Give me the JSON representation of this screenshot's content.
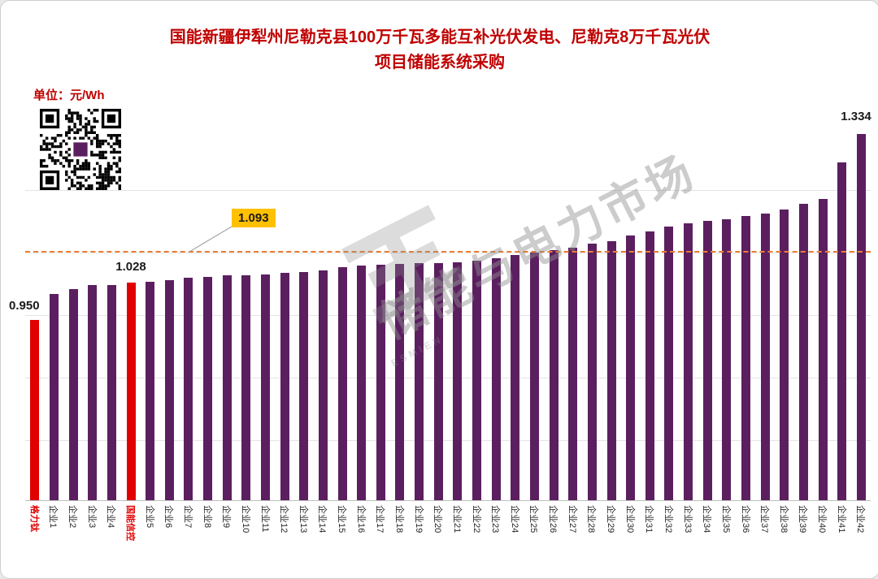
{
  "title": {
    "line1": "国能新疆伊犁州尼勒克县100万千瓦多能互补光伏发电、尼勒克8万千瓦光伏",
    "line2": "项目储能系统采购"
  },
  "unit_label": "单位：元/Wh",
  "watermark": {
    "text": "储能与电力市场",
    "sub": "ESMIEN"
  },
  "annotations": {
    "first_value": "0.950",
    "second_red_value": "1.028",
    "max_value": "1.334",
    "avg_value": "1.093"
  },
  "chart_data": {
    "type": "bar",
    "title": "国能新疆伊犁州尼勒克县100万千瓦多能互补光伏发电、尼勒克8万千瓦光伏项目储能系统采购",
    "ylabel": "元/Wh",
    "ylim": [
      0.58,
      1.39
    ],
    "grid": true,
    "bar_color": "#5b1f60",
    "highlight_color": "#e00000",
    "highlight_indices": [
      0,
      5
    ],
    "reference_line": {
      "value": 1.093,
      "color": "#ed7d31",
      "style": "dashed",
      "label": "1.093"
    },
    "categories": [
      "格力钛",
      "企业1",
      "企业2",
      "企业3",
      "企业4",
      "国能信控",
      "企业5",
      "企业6",
      "企业7",
      "企业8",
      "企业9",
      "企业10",
      "企业11",
      "企业12",
      "企业13",
      "企业14",
      "企业15",
      "企业16",
      "企业17",
      "企业18",
      "企业19",
      "企业20",
      "企业21",
      "企业22",
      "企业23",
      "企业24",
      "企业25",
      "企业26",
      "企业27",
      "企业28",
      "企业29",
      "企业30",
      "企业31",
      "企业32",
      "企业33",
      "企业34",
      "企业35",
      "企业36",
      "企业37",
      "企业38",
      "企业39",
      "企业40",
      "企业41",
      "企业42"
    ],
    "values": [
      0.95,
      1.005,
      1.015,
      1.022,
      1.023,
      1.028,
      1.03,
      1.033,
      1.038,
      1.04,
      1.042,
      1.043,
      1.044,
      1.047,
      1.05,
      1.053,
      1.06,
      1.062,
      1.064,
      1.066,
      1.068,
      1.068,
      1.07,
      1.072,
      1.078,
      1.085,
      1.09,
      1.095,
      1.1,
      1.108,
      1.112,
      1.125,
      1.133,
      1.142,
      1.15,
      1.155,
      1.158,
      1.165,
      1.17,
      1.178,
      1.19,
      1.2,
      1.275,
      1.334
    ]
  }
}
